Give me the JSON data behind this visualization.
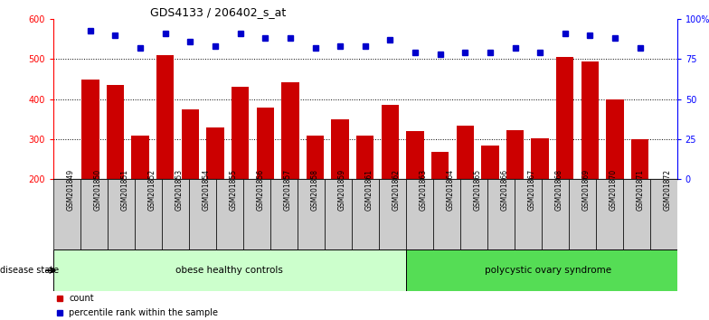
{
  "title": "GDS4133 / 206402_s_at",
  "samples": [
    "GSM201849",
    "GSM201850",
    "GSM201851",
    "GSM201852",
    "GSM201853",
    "GSM201854",
    "GSM201855",
    "GSM201856",
    "GSM201857",
    "GSM201858",
    "GSM201859",
    "GSM201861",
    "GSM201862",
    "GSM201863",
    "GSM201864",
    "GSM201865",
    "GSM201866",
    "GSM201867",
    "GSM201868",
    "GSM201869",
    "GSM201870",
    "GSM201871",
    "GSM201872"
  ],
  "counts": [
    450,
    435,
    310,
    510,
    375,
    330,
    432,
    380,
    442,
    310,
    350,
    310,
    385,
    320,
    268,
    335,
    285,
    322,
    302,
    505,
    494,
    400,
    300
  ],
  "percentiles": [
    93,
    90,
    82,
    91,
    86,
    83,
    91,
    88,
    88,
    82,
    83,
    83,
    87,
    79,
    78,
    79,
    79,
    82,
    79,
    91,
    90,
    88,
    82
  ],
  "group1_label": "obese healthy controls",
  "group1_count": 13,
  "group2_label": "polycystic ovary syndrome",
  "group2_count": 10,
  "disease_state_label": "disease state",
  "ylim_left": [
    200,
    600
  ],
  "ylim_right": [
    0,
    100
  ],
  "yticks_left": [
    200,
    300,
    400,
    500,
    600
  ],
  "yticks_right": [
    0,
    25,
    50,
    75,
    100
  ],
  "bar_color": "#cc0000",
  "dot_color": "#0000cc",
  "group1_color": "#ccffcc",
  "group2_color": "#55dd55",
  "tick_box_color": "#cccccc",
  "legend_count_color": "#cc0000",
  "legend_pct_color": "#0000cc",
  "count_legend": "count",
  "pct_legend": "percentile rank within the sample",
  "background_color": "#ffffff",
  "bar_width": 0.7
}
